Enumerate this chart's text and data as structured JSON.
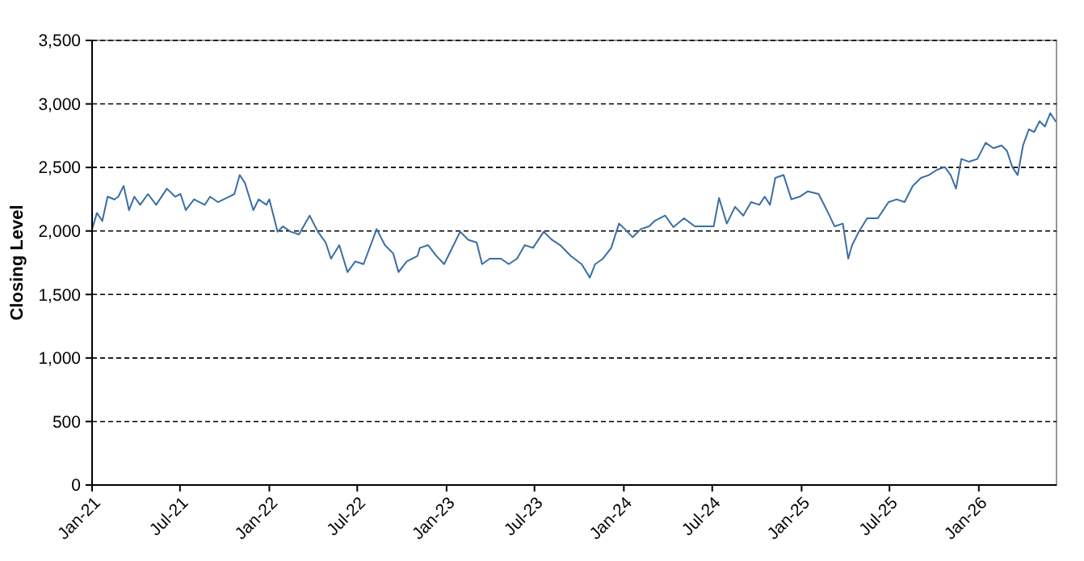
{
  "chart_data": {
    "type": "line",
    "ylabel": "Closing Level",
    "xlim": [
      "2021-01-01",
      "2026-06-10"
    ],
    "ylim": [
      0,
      3500
    ],
    "xticks": [
      {
        "value": "2021-01-01",
        "label": "Jan-21"
      },
      {
        "value": "2021-07-01",
        "label": "Jul-21"
      },
      {
        "value": "2022-01-01",
        "label": "Jan-22"
      },
      {
        "value": "2022-07-01",
        "label": "Jul-22"
      },
      {
        "value": "2023-01-01",
        "label": "Jan-23"
      },
      {
        "value": "2023-07-01",
        "label": "Jul-23"
      },
      {
        "value": "2024-01-01",
        "label": "Jan-24"
      },
      {
        "value": "2024-07-01",
        "label": "Jul-24"
      },
      {
        "value": "2025-01-01",
        "label": "Jan-25"
      },
      {
        "value": "2025-07-01",
        "label": "Jul-25"
      },
      {
        "value": "2026-01-01",
        "label": "Jan-26"
      }
    ],
    "yticks": [
      0,
      500,
      {
        "value": 1000,
        "label": "1,000"
      },
      {
        "value": 1500,
        "label": "1,500"
      },
      {
        "value": 2000,
        "label": "2,000"
      },
      {
        "value": 2500,
        "label": "2,500"
      },
      {
        "value": 3000,
        "label": "3,000"
      },
      {
        "value": 3500,
        "label": "3,500"
      }
    ],
    "grid": "y",
    "line_style": "solid",
    "marker": "none",
    "x": [
      "2021-01-01",
      "2021-01-11",
      "2021-01-22",
      "2021-02-02",
      "2021-02-16",
      "2021-02-24",
      "2021-03-07",
      "2021-03-18",
      "2021-03-29",
      "2021-04-10",
      "2021-04-26",
      "2021-05-13",
      "2021-06-04",
      "2021-06-21",
      "2021-07-02",
      "2021-07-13",
      "2021-07-30",
      "2021-08-21",
      "2021-09-01",
      "2021-09-17",
      "2021-10-10",
      "2021-10-21",
      "2021-11-01",
      "2021-11-12",
      "2021-11-29",
      "2021-12-10",
      "2021-12-26",
      "2022-01-01",
      "2022-01-18",
      "2022-01-29",
      "2022-02-14",
      "2022-03-03",
      "2022-03-25",
      "2022-04-11",
      "2022-04-27",
      "2022-05-08",
      "2022-05-25",
      "2022-06-11",
      "2022-06-27",
      "2022-07-14",
      "2022-08-10",
      "2022-08-27",
      "2022-09-13",
      "2022-09-24",
      "2022-10-11",
      "2022-11-02",
      "2022-11-07",
      "2022-11-24",
      "2022-12-11",
      "2022-12-27",
      "2023-01-18",
      "2023-01-29",
      "2023-02-15",
      "2023-03-04",
      "2023-03-15",
      "2023-03-31",
      "2023-04-23",
      "2023-05-09",
      "2023-05-26",
      "2023-06-11",
      "2023-06-28",
      "2023-07-20",
      "2023-08-06",
      "2023-08-23",
      "2023-09-14",
      "2023-10-06",
      "2023-10-23",
      "2023-11-03",
      "2023-11-19",
      "2023-12-06",
      "2023-12-22",
      "2024-01-03",
      "2024-01-19",
      "2024-02-05",
      "2024-02-22",
      "2024-03-04",
      "2024-03-26",
      "2024-04-12",
      "2024-05-04",
      "2024-05-26",
      "2024-06-17",
      "2024-07-04",
      "2024-07-15",
      "2024-07-31",
      "2024-08-17",
      "2024-09-03",
      "2024-09-19",
      "2024-10-06",
      "2024-10-17",
      "2024-10-28",
      "2024-11-08",
      "2024-11-25",
      "2024-12-11",
      "2024-12-28",
      "2025-01-14",
      "2025-02-05",
      "2025-02-22",
      "2025-03-10",
      "2025-03-27",
      "2025-04-07",
      "2025-04-15",
      "2025-04-29",
      "2025-05-16",
      "2025-06-07",
      "2025-06-29",
      "2025-07-16",
      "2025-08-01",
      "2025-08-18",
      "2025-09-04",
      "2025-09-20",
      "2025-10-07",
      "2025-10-23",
      "2025-11-04",
      "2025-11-15",
      "2025-11-26",
      "2025-12-12",
      "2025-12-29",
      "2026-01-15",
      "2026-01-31",
      "2026-02-17",
      "2026-02-28",
      "2026-03-11",
      "2026-03-22",
      "2026-04-02",
      "2026-04-14",
      "2026-04-25",
      "2026-05-06",
      "2026-05-17",
      "2026-05-28",
      "2026-06-08"
    ],
    "series": [
      {
        "color": "#3a6ea5",
        "values": [
          2015,
          2142,
          2078,
          2270,
          2248,
          2270,
          2355,
          2164,
          2270,
          2206,
          2291,
          2206,
          2333,
          2270,
          2291,
          2164,
          2249,
          2206,
          2270,
          2227,
          2270,
          2291,
          2440,
          2376,
          2164,
          2249,
          2206,
          2249,
          1994,
          2036,
          1994,
          1973,
          2121,
          1994,
          1909,
          1782,
          1888,
          1676,
          1760,
          1739,
          2015,
          1888,
          1824,
          1676,
          1760,
          1803,
          1867,
          1888,
          1803,
          1739,
          1909,
          1994,
          1930,
          1909,
          1739,
          1782,
          1782,
          1739,
          1782,
          1888,
          1867,
          1994,
          1930,
          1888,
          1803,
          1739,
          1633,
          1739,
          1782,
          1867,
          2058,
          2015,
          1951,
          2015,
          2036,
          2078,
          2121,
          2030,
          2100,
          2036,
          2036,
          2036,
          2260,
          2058,
          2190,
          2121,
          2227,
          2206,
          2270,
          2206,
          2418,
          2440,
          2249,
          2270,
          2312,
          2291,
          2164,
          2036,
          2058,
          1782,
          1888,
          1994,
          2100,
          2100,
          2227,
          2249,
          2227,
          2355,
          2418,
          2440,
          2482,
          2503,
          2440,
          2333,
          2567,
          2545,
          2567,
          2694,
          2652,
          2673,
          2630,
          2503,
          2440,
          2673,
          2800,
          2779,
          2864,
          2822,
          2927,
          2864
        ]
      }
    ]
  }
}
